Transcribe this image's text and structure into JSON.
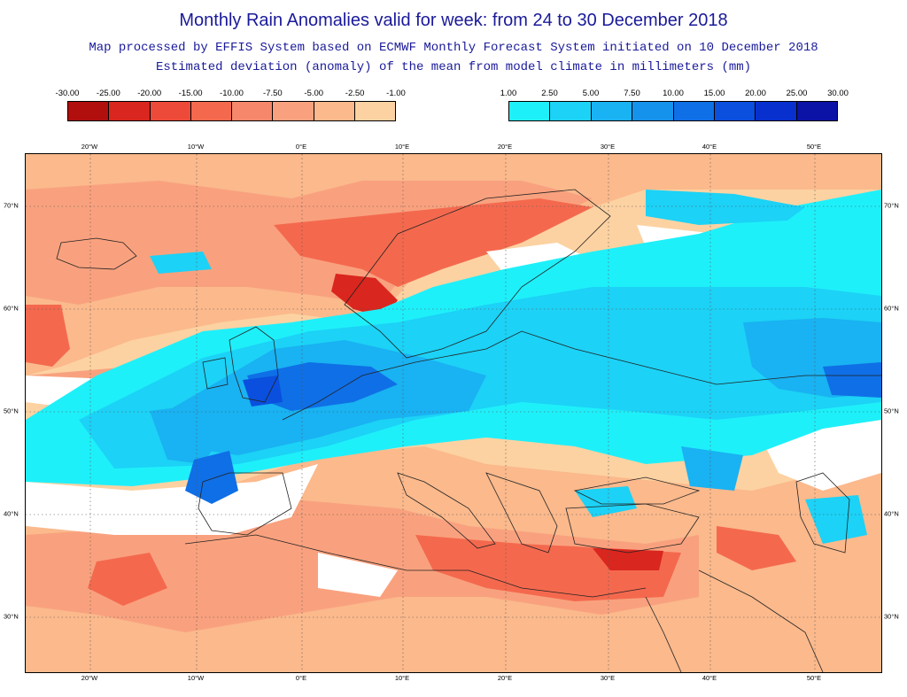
{
  "header": {
    "title": "Monthly Rain Anomalies valid for week: from 24 to 30 December 2018",
    "subtitle1": "Map processed by EFFIS System based on ECMWF Monthly Forecast System initiated on 10 December 2018",
    "subtitle2": "Estimated deviation (anomaly) of the mean from model climate in millimeters (mm)"
  },
  "legend_negative": {
    "labels": [
      "-30.00",
      "-25.00",
      "-20.00",
      "-15.00",
      "-10.00",
      "-7.50",
      "-5.00",
      "-2.50",
      "-1.00"
    ],
    "colors": [
      "#b10e0e",
      "#d9261e",
      "#ee4a3a",
      "#f4694e",
      "#f7876a",
      "#f9a17e",
      "#fbb98c",
      "#fcd2a2"
    ]
  },
  "legend_positive": {
    "labels": [
      "1.00",
      "2.50",
      "5.00",
      "7.50",
      "10.00",
      "15.00",
      "20.00",
      "25.00",
      "30.00"
    ],
    "colors": [
      "#1ef0fa",
      "#1cd2f6",
      "#19b2f2",
      "#1592ec",
      "#0f6fe6",
      "#0a4fde",
      "#0730cf",
      "#0b12a6"
    ]
  },
  "axes": {
    "lon_labels": [
      "20°W",
      "10°W",
      "0°E",
      "10°E",
      "20°E",
      "30°E",
      "40°E",
      "50°E"
    ],
    "lat_labels": [
      "70°N",
      "60°N",
      "50°N",
      "40°N",
      "30°N"
    ]
  },
  "map": {
    "colors": {
      "sea_bg": "#fcd2a2",
      "neg_light": "#fbb98c",
      "neg_mid": "#f9a17e",
      "neg_strong": "#f4694e",
      "neg_strongest": "#d9261e",
      "pos_1": "#1ef0fa",
      "pos_2": "#1cd2f6",
      "pos_3": "#19b2f2",
      "pos_4": "#0f6fe6",
      "pos_5": "#0a4fde",
      "coast": "#222222",
      "grid": "#555555",
      "white": "#ffffff"
    }
  }
}
